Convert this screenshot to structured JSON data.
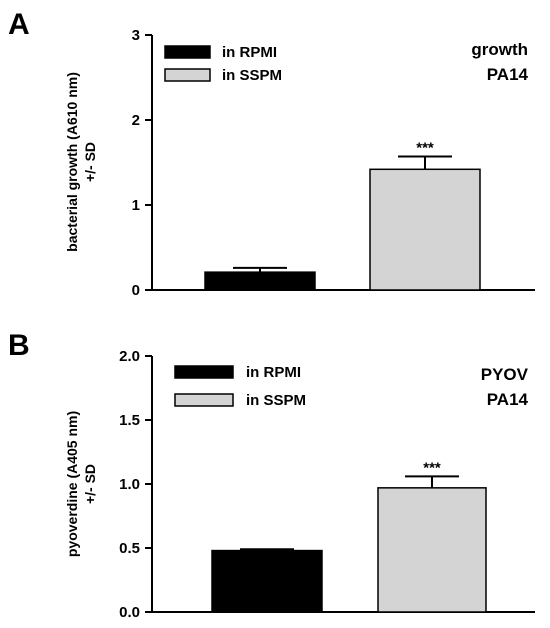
{
  "chart_data": [
    {
      "type": "bar",
      "panel": "A",
      "ylabel": [
        "bacterial growth (A610 nm)",
        "+/- SD"
      ],
      "ylim": [
        0,
        3
      ],
      "yticks": [
        "0",
        "1",
        "2",
        "3"
      ],
      "corner_label": [
        "growth",
        "PA14"
      ],
      "legend_position": "top-left",
      "series": [
        {
          "name": "in RPMI",
          "value": 0.21,
          "error": 0.05,
          "color": "#000000",
          "significance": ""
        },
        {
          "name": "in SSPM",
          "value": 1.42,
          "error": 0.15,
          "color": "#d4d4d4",
          "significance": "***"
        }
      ]
    },
    {
      "type": "bar",
      "panel": "B",
      "ylabel": [
        "pyoverdine (A405 nm)",
        "+/- SD"
      ],
      "ylim": [
        0,
        2
      ],
      "yticks": [
        "0.0",
        "0.5",
        "1.0",
        "1.5",
        "2.0"
      ],
      "corner_label": [
        "PYOV",
        "PA14"
      ],
      "legend_position": "top-left",
      "series": [
        {
          "name": "in RPMI",
          "value": 0.48,
          "error": 0.01,
          "color": "#000000",
          "significance": ""
        },
        {
          "name": "in SSPM",
          "value": 0.97,
          "error": 0.09,
          "color": "#d4d4d4",
          "significance": "***"
        }
      ]
    }
  ]
}
